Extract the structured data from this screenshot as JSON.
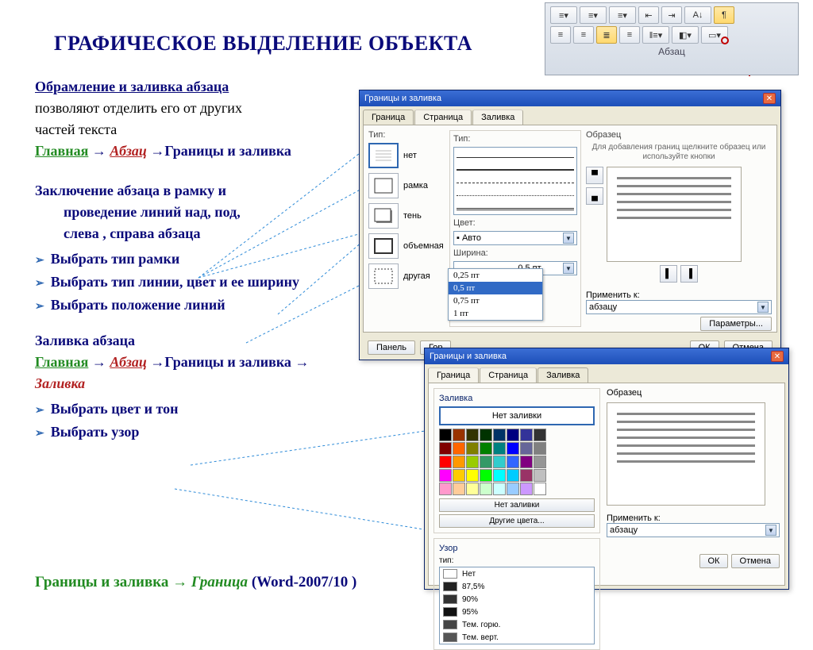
{
  "title": "ГРАФИЧЕСКОЕ ВЫДЕЛЕНИЕ ОБЪЕКТА",
  "text": {
    "l1": "Обрамление и заливка абзаца",
    "l2": "позволяют отделить его от других",
    "l3": "частей текста",
    "path1_a": "Главная",
    "path1_b": "Абзац",
    "path1_c": "Границы и заливка",
    "l4a": "Заключение абзаца в рамку и",
    "l4b": "проведение линий над, под,",
    "l4c": "слева , справа абзаца",
    "b1": "Выбрать тип рамки",
    "b2": "Выбрать тип линии, цвет и ее ширину",
    "b3": "Выбрать положение линий",
    "l5": "Заливка абзаца",
    "path2_a": "Главная",
    "path2_b": "Абзац",
    "path2_c": "Границы и заливка",
    "path2_d": "Заливка",
    "b4": "Выбрать цвет и тон",
    "b5": "Выбрать узор"
  },
  "footer": {
    "a": "Границы и заливка",
    "b": "Граница",
    "c": "(Word-2007/10 )"
  },
  "ribbon": {
    "label": "Абзац"
  },
  "dlg1": {
    "title": "Границы и заливка",
    "tabs": [
      "Граница",
      "Страница",
      "Заливка"
    ],
    "typeLabel": "Тип:",
    "types": [
      "нет",
      "рамка",
      "тень",
      "объемная",
      "другая"
    ],
    "styleLabel": "Тип:",
    "colorLabel": "Цвет:",
    "colorVal": "Авто",
    "widthLabel": "Ширина:",
    "widthVal": "0,5 пт",
    "widthOpts": [
      "0,25 пт",
      "0,5 пт",
      "0,75 пт",
      "1 пт"
    ],
    "sampleLabel": "Образец",
    "sampleHint": "Для добавления границ щелкните образец или используйте кнопки",
    "applyLabel": "Применить к:",
    "applyVal": "абзацу",
    "paramsBtn": "Параметры...",
    "panelBtn": "Панель",
    "horBtn": "Гор",
    "ok": "ОК",
    "cancel": "Отмена"
  },
  "dlg2": {
    "title": "Границы и заливка",
    "tabs": [
      "Граница",
      "Страница",
      "Заливка"
    ],
    "fillLabel": "Заливка",
    "noFill": "Нет заливки",
    "noFill2": "Нет заливки",
    "more": "Другие цвета...",
    "patternGroup": "Узор",
    "patternTypeLabel": "тип:",
    "patterns": [
      "Нет",
      "87,5%",
      "90%",
      "95%",
      "Тем. горю.",
      "Тем. верт."
    ],
    "sampleLabel": "Образец",
    "applyLabel": "Применить к:",
    "applyVal": "абзацу",
    "ok": "ОК",
    "cancel": "Отмена"
  },
  "palette": [
    "#000000",
    "#993300",
    "#333300",
    "#003300",
    "#003366",
    "#000080",
    "#333399",
    "#333333",
    "#800000",
    "#ff6600",
    "#808000",
    "#008000",
    "#008080",
    "#0000ff",
    "#666699",
    "#808080",
    "#ff0000",
    "#ff9900",
    "#99cc00",
    "#339966",
    "#33cccc",
    "#3366ff",
    "#800080",
    "#969696",
    "#ff00ff",
    "#ffcc00",
    "#ffff00",
    "#00ff00",
    "#00ffff",
    "#00ccff",
    "#993366",
    "#c0c0c0",
    "#ff99cc",
    "#ffcc99",
    "#ffff99",
    "#ccffcc",
    "#ccffff",
    "#99ccff",
    "#cc99ff",
    "#ffffff"
  ],
  "connectors": {
    "stroke": "#2e8bd8",
    "dash": "3,3"
  }
}
